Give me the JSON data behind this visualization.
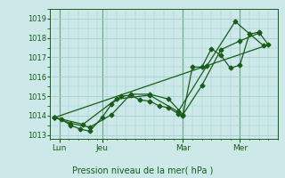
{
  "title": "Pression niveau de la mer( hPa )",
  "bg_color": "#cce8e8",
  "grid_color": "#99cccc",
  "line_color": "#1a5c1a",
  "marker_color": "#1a5c1a",
  "ylim": [
    1012.8,
    1019.5
  ],
  "yticks": [
    1013,
    1014,
    1015,
    1016,
    1017,
    1018,
    1019
  ],
  "xlim": [
    0,
    24
  ],
  "day_labels": [
    "Lun",
    "Jeu",
    "Mar",
    "Mer"
  ],
  "day_positions": [
    1.0,
    5.5,
    14.0,
    20.0
  ],
  "day_vlines": [
    1.0,
    5.5,
    14.0,
    20.0
  ],
  "series1": {
    "x": [
      0.5,
      1.2,
      2.2,
      3.2,
      4.2,
      5.5,
      6.5,
      7.5,
      8.5,
      9.5,
      10.5,
      11.5,
      12.5,
      13.5,
      14.0,
      15.0,
      16.0,
      17.0,
      18.0,
      19.0,
      20.0,
      21.0,
      22.0,
      23.0
    ],
    "y": [
      1013.9,
      1013.8,
      1013.5,
      1013.3,
      1013.2,
      1013.9,
      1014.6,
      1015.0,
      1015.05,
      1014.8,
      1014.75,
      1014.5,
      1014.4,
      1014.1,
      1014.0,
      1016.5,
      1016.5,
      1017.45,
      1017.1,
      1016.45,
      1016.6,
      1018.2,
      1018.3,
      1017.65
    ]
  },
  "series2": {
    "x": [
      0.5,
      2.2,
      4.2,
      6.5,
      8.5,
      10.5,
      12.5,
      14.0,
      16.0,
      18.0,
      20.0,
      22.0
    ],
    "y": [
      1013.9,
      1013.6,
      1013.4,
      1014.05,
      1015.1,
      1015.1,
      1014.85,
      1014.05,
      1015.55,
      1017.4,
      1017.85,
      1018.25
    ]
  },
  "series3": {
    "x": [
      0.5,
      3.5,
      7.0,
      10.5,
      13.5,
      16.5,
      19.5,
      22.5
    ],
    "y": [
      1013.9,
      1013.55,
      1014.85,
      1015.05,
      1014.2,
      1016.55,
      1018.85,
      1017.6
    ]
  },
  "series4_smooth": {
    "x": [
      0.5,
      23.0
    ],
    "y": [
      1013.9,
      1017.65
    ]
  }
}
